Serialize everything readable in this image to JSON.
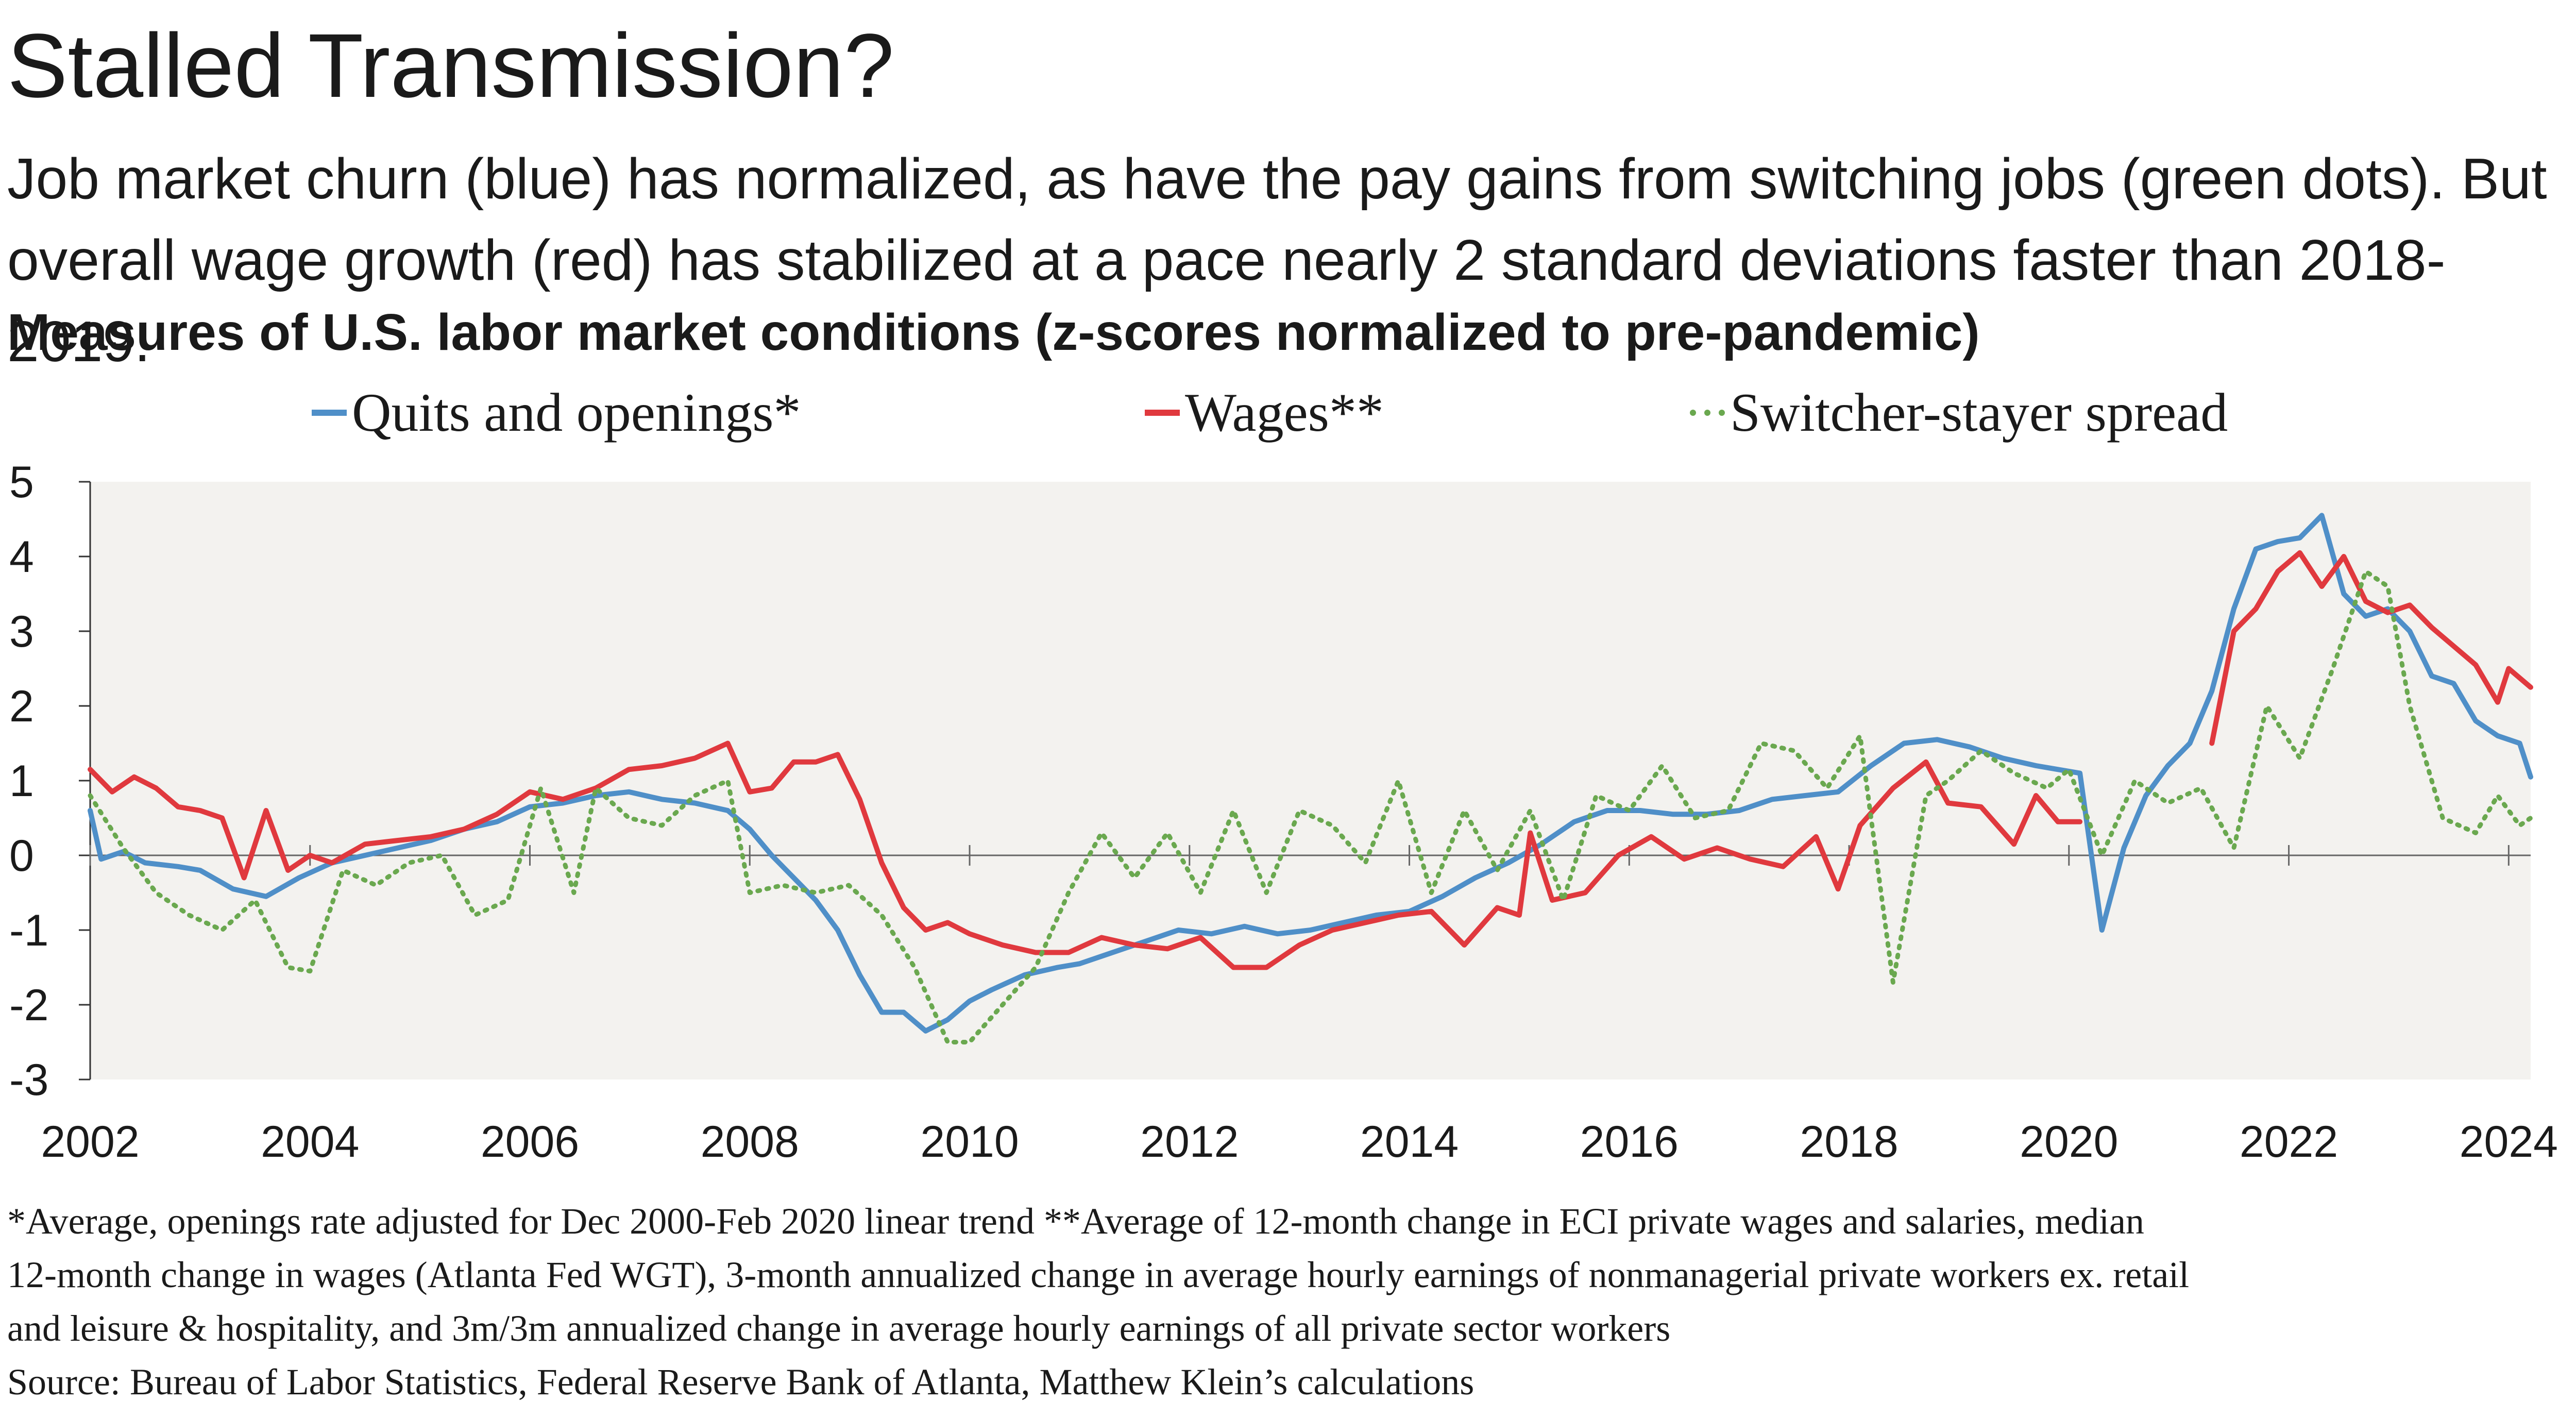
{
  "title": "Stalled Transmission?",
  "subtitle": "Job market churn (blue) has normalized, as have the pay gains from switching jobs (green dots). But overall wage growth (red) has stabilized at a pace nearly 2 standard deviations faster than 2018-2019.",
  "chart_heading": "Measures of U.S. labor market conditions (z-scores normalized to pre-pandemic)",
  "footnotes": [
    "*Average, openings rate adjusted for Dec 2000-Feb 2020 linear trend    **Average of 12-month change in ECI private wages and salaries, median",
    "12-month change in wages (Atlanta Fed WGT), 3-month annualized change in average hourly earnings of nonmanagerial private workers ex. retail",
    "and leisure & hospitality, and 3m/3m annualized change in average hourly earnings of all private sector workers",
    "Source: Bureau of Labor Statistics, Federal Reserve Bank of Atlanta, Matthew Klein’s calculations"
  ],
  "colors": {
    "quits": "#4f8fc8",
    "wages": "#e0393e",
    "switcher": "#6aa84f",
    "plot_bg": "#f3f2ef",
    "text": "#1a1a1a"
  },
  "chart_data": {
    "type": "line",
    "title": "Measures of U.S. labor market conditions (z-scores normalized to pre-pandemic)",
    "xlabel": "",
    "ylabel": "",
    "xlim": [
      2002,
      2024.2
    ],
    "ylim": [
      -3,
      5
    ],
    "xticks": [
      2002,
      2004,
      2006,
      2008,
      2010,
      2012,
      2014,
      2016,
      2018,
      2020,
      2022,
      2024
    ],
    "yticks": [
      -3,
      -2,
      -1,
      0,
      1,
      2,
      3,
      4,
      5
    ],
    "legend_position": "top",
    "series": [
      {
        "name": "Quits and openings*",
        "style": "solid",
        "x": [
          2002.0,
          2002.1,
          2002.3,
          2002.5,
          2002.8,
          2003.0,
          2003.3,
          2003.6,
          2003.9,
          2004.2,
          2004.5,
          2004.8,
          2005.1,
          2005.4,
          2005.7,
          2006.0,
          2006.3,
          2006.6,
          2006.9,
          2007.2,
          2007.5,
          2007.8,
          2008.0,
          2008.2,
          2008.4,
          2008.6,
          2008.8,
          2009.0,
          2009.2,
          2009.4,
          2009.6,
          2009.8,
          2010.0,
          2010.2,
          2010.5,
          2010.8,
          2011.0,
          2011.3,
          2011.6,
          2011.9,
          2012.2,
          2012.5,
          2012.8,
          2013.1,
          2013.4,
          2013.7,
          2014.0,
          2014.3,
          2014.6,
          2014.9,
          2015.2,
          2015.5,
          2015.8,
          2016.1,
          2016.4,
          2016.7,
          2017.0,
          2017.3,
          2017.6,
          2017.9,
          2018.2,
          2018.5,
          2018.8,
          2019.1,
          2019.4,
          2019.7,
          2019.9,
          2020.1,
          2020.3,
          2020.5,
          2020.7,
          2020.9,
          2021.1,
          2021.3,
          2021.5,
          2021.7,
          2021.9,
          2022.1,
          2022.3,
          2022.5,
          2022.7,
          2022.9,
          2023.1,
          2023.3,
          2023.5,
          2023.7,
          2023.9,
          2024.1,
          2024.2
        ],
        "y": [
          0.6,
          -0.05,
          0.05,
          -0.1,
          -0.15,
          -0.2,
          -0.45,
          -0.55,
          -0.3,
          -0.1,
          0.0,
          0.1,
          0.2,
          0.35,
          0.45,
          0.65,
          0.7,
          0.8,
          0.85,
          0.75,
          0.7,
          0.6,
          0.35,
          0.0,
          -0.3,
          -0.6,
          -1.0,
          -1.6,
          -2.1,
          -2.1,
          -2.35,
          -2.2,
          -1.95,
          -1.8,
          -1.6,
          -1.5,
          -1.45,
          -1.3,
          -1.15,
          -1.0,
          -1.05,
          -0.95,
          -1.05,
          -1.0,
          -0.9,
          -0.8,
          -0.75,
          -0.55,
          -0.3,
          -0.1,
          0.15,
          0.45,
          0.6,
          0.6,
          0.55,
          0.55,
          0.6,
          0.75,
          0.8,
          0.85,
          1.2,
          1.5,
          1.55,
          1.45,
          1.3,
          1.2,
          1.15,
          1.1,
          -1.0,
          0.1,
          0.8,
          1.2,
          1.5,
          2.2,
          3.3,
          4.1,
          4.2,
          4.25,
          4.55,
          3.5,
          3.2,
          3.3,
          3.0,
          2.4,
          2.3,
          1.8,
          1.6,
          1.5,
          1.05
        ]
      },
      {
        "name": "Wages**",
        "style": "solid",
        "x": [
          2002.0,
          2002.2,
          2002.4,
          2002.6,
          2002.8,
          2003.0,
          2003.2,
          2003.4,
          2003.6,
          2003.8,
          2004.0,
          2004.2,
          2004.5,
          2004.8,
          2005.1,
          2005.4,
          2005.7,
          2006.0,
          2006.3,
          2006.6,
          2006.9,
          2007.2,
          2007.5,
          2007.8,
          2008.0,
          2008.2,
          2008.4,
          2008.6,
          2008.8,
          2009.0,
          2009.2,
          2009.4,
          2009.6,
          2009.8,
          2010.0,
          2010.3,
          2010.6,
          2010.9,
          2011.2,
          2011.5,
          2011.8,
          2012.1,
          2012.4,
          2012.7,
          2013.0,
          2013.3,
          2013.6,
          2013.9,
          2014.2,
          2014.5,
          2014.8,
          2015.0,
          2015.1,
          2015.3,
          2015.6,
          2015.9,
          2016.2,
          2016.5,
          2016.8,
          2017.1,
          2017.4,
          2017.7,
          2017.9,
          2018.1,
          2018.4,
          2018.7,
          2018.9,
          2019.2,
          2019.5,
          2019.7,
          2019.9,
          2020.1,
          2021.3,
          2021.5,
          2021.7,
          2021.9,
          2022.1,
          2022.3,
          2022.5,
          2022.7,
          2022.9,
          2023.1,
          2023.3,
          2023.5,
          2023.7,
          2023.9,
          2024.0,
          2024.2
        ],
        "y": [
          1.15,
          0.85,
          1.05,
          0.9,
          0.65,
          0.6,
          0.5,
          -0.3,
          0.6,
          -0.2,
          0.0,
          -0.1,
          0.15,
          0.2,
          0.25,
          0.35,
          0.55,
          0.85,
          0.75,
          0.9,
          1.15,
          1.2,
          1.3,
          1.5,
          0.85,
          0.9,
          1.25,
          1.25,
          1.35,
          0.75,
          -0.1,
          -0.7,
          -1.0,
          -0.9,
          -1.05,
          -1.2,
          -1.3,
          -1.3,
          -1.1,
          -1.2,
          -1.25,
          -1.1,
          -1.5,
          -1.5,
          -1.2,
          -1.0,
          -0.9,
          -0.8,
          -0.75,
          -1.2,
          -0.7,
          -0.8,
          0.3,
          -0.6,
          -0.5,
          0.0,
          0.25,
          -0.05,
          0.1,
          -0.05,
          -0.15,
          0.25,
          -0.45,
          0.4,
          0.9,
          1.25,
          0.7,
          0.65,
          0.15,
          0.8,
          0.45,
          0.45,
          1.5,
          3.0,
          3.3,
          3.8,
          4.05,
          3.6,
          4.0,
          3.4,
          3.25,
          3.35,
          3.05,
          2.8,
          2.55,
          2.05,
          2.5,
          2.25
        ]
      },
      {
        "name": "Switcher-stayer spread",
        "style": "dotted",
        "x": [
          2002.0,
          2002.3,
          2002.6,
          2002.9,
          2003.2,
          2003.5,
          2003.8,
          2004.0,
          2004.3,
          2004.6,
          2004.9,
          2005.2,
          2005.5,
          2005.8,
          2006.1,
          2006.4,
          2006.6,
          2006.9,
          2007.2,
          2007.5,
          2007.8,
          2008.0,
          2008.3,
          2008.6,
          2008.9,
          2009.2,
          2009.5,
          2009.8,
          2010.0,
          2010.3,
          2010.6,
          2010.9,
          2011.2,
          2011.5,
          2011.8,
          2012.1,
          2012.4,
          2012.7,
          2013.0,
          2013.3,
          2013.6,
          2013.9,
          2014.2,
          2014.5,
          2014.8,
          2015.1,
          2015.4,
          2015.7,
          2016.0,
          2016.3,
          2016.6,
          2016.9,
          2017.2,
          2017.5,
          2017.8,
          2018.1,
          2018.4,
          2018.7,
          2018.9,
          2019.2,
          2019.5,
          2019.8,
          2020.0,
          2020.3,
          2020.6,
          2020.9,
          2021.2,
          2021.5,
          2021.8,
          2022.1,
          2022.4,
          2022.7,
          2022.9,
          2023.1,
          2023.4,
          2023.7,
          2023.9,
          2024.1,
          2024.2
        ],
        "y": [
          0.8,
          0.1,
          -0.5,
          -0.8,
          -1.0,
          -0.6,
          -1.5,
          -1.55,
          -0.2,
          -0.4,
          -0.1,
          0.0,
          -0.8,
          -0.6,
          0.9,
          -0.5,
          0.9,
          0.5,
          0.4,
          0.8,
          1.0,
          -0.5,
          -0.4,
          -0.5,
          -0.4,
          -0.8,
          -1.5,
          -2.5,
          -2.5,
          -2.0,
          -1.5,
          -0.5,
          0.3,
          -0.3,
          0.3,
          -0.5,
          0.6,
          -0.5,
          0.6,
          0.4,
          -0.1,
          1.0,
          -0.5,
          0.6,
          -0.2,
          0.6,
          -0.6,
          0.8,
          0.6,
          1.2,
          0.5,
          0.6,
          1.5,
          1.4,
          0.9,
          1.6,
          -1.7,
          0.8,
          1.0,
          1.4,
          1.1,
          0.9,
          1.15,
          0.0,
          1.0,
          0.7,
          0.9,
          0.1,
          2.0,
          1.3,
          2.5,
          3.8,
          3.6,
          2.0,
          0.5,
          0.3,
          0.8,
          0.4,
          0.5
        ]
      }
    ]
  }
}
